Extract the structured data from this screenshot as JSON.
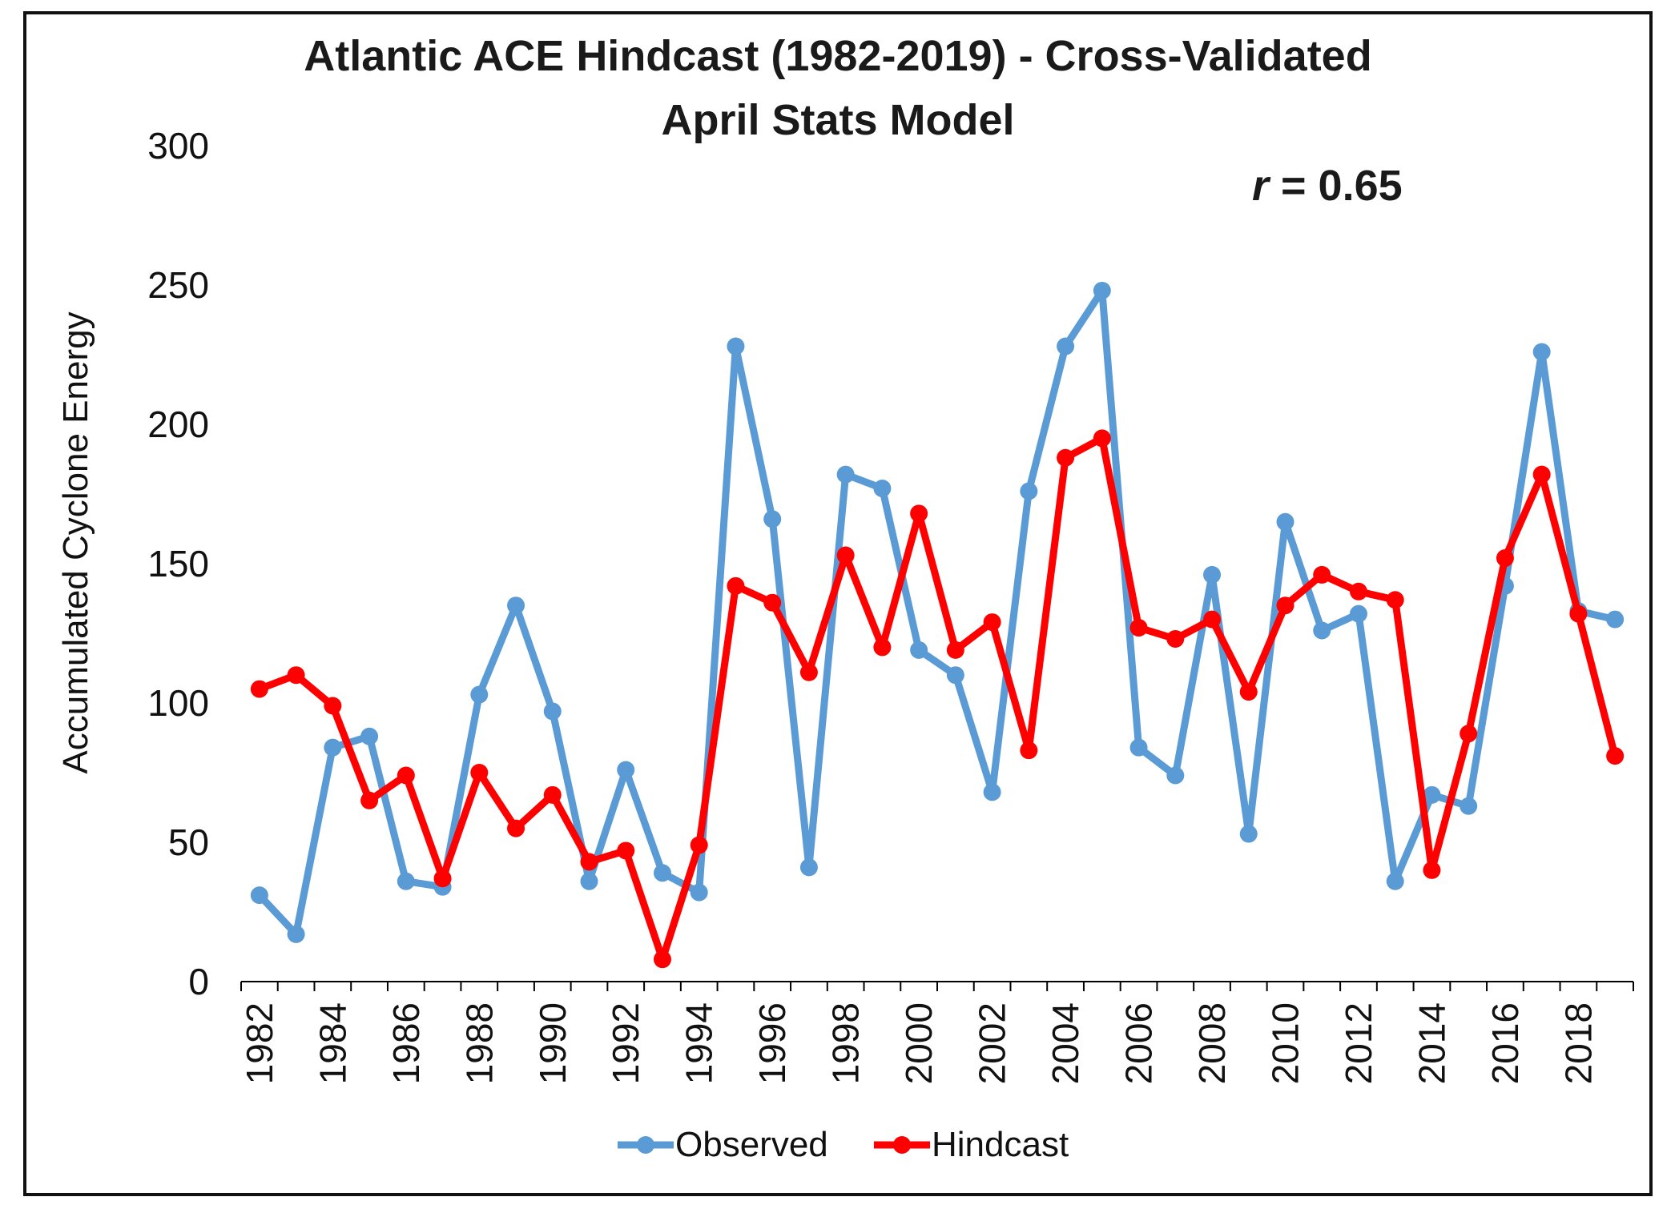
{
  "chart_data": {
    "type": "line",
    "title_line1": "Atlantic ACE Hindcast (1982-2019) - Cross-Validated",
    "title_line2": "April Stats Model",
    "annotation": {
      "symbol": "r",
      "text": " = 0.65"
    },
    "xlabel": "",
    "ylabel": "Accumulated Cyclone Energy",
    "ylim": [
      0,
      300
    ],
    "yticks": [
      0,
      50,
      100,
      150,
      200,
      250,
      300
    ],
    "x": [
      1982,
      1983,
      1984,
      1985,
      1986,
      1987,
      1988,
      1989,
      1990,
      1991,
      1992,
      1993,
      1994,
      1995,
      1996,
      1997,
      1998,
      1999,
      2000,
      2001,
      2002,
      2003,
      2004,
      2005,
      2006,
      2007,
      2008,
      2009,
      2010,
      2011,
      2012,
      2013,
      2014,
      2015,
      2016,
      2017,
      2018,
      2019
    ],
    "xtick_labels": [
      "1982",
      "1984",
      "1986",
      "1988",
      "1990",
      "1992",
      "1994",
      "1996",
      "1998",
      "2000",
      "2002",
      "2004",
      "2006",
      "2008",
      "2010",
      "2012",
      "2014",
      "2016",
      "2018"
    ],
    "grid": false,
    "legend_position": "bottom",
    "series": [
      {
        "name": "Observed",
        "color": "#5b9bd5",
        "values": [
          31,
          17,
          84,
          88,
          36,
          34,
          103,
          135,
          97,
          36,
          76,
          39,
          32,
          228,
          166,
          41,
          182,
          177,
          119,
          110,
          68,
          176,
          228,
          248,
          84,
          74,
          146,
          53,
          165,
          126,
          132,
          36,
          67,
          63,
          142,
          226,
          133,
          130
        ]
      },
      {
        "name": "Hindcast",
        "color": "#ff0000",
        "values": [
          105,
          110,
          99,
          65,
          74,
          37,
          75,
          55,
          67,
          43,
          47,
          8,
          49,
          142,
          136,
          111,
          153,
          120,
          168,
          119,
          129,
          83,
          188,
          195,
          127,
          123,
          130,
          104,
          135,
          146,
          140,
          137,
          40,
          89,
          152,
          182,
          132,
          81
        ]
      }
    ]
  }
}
